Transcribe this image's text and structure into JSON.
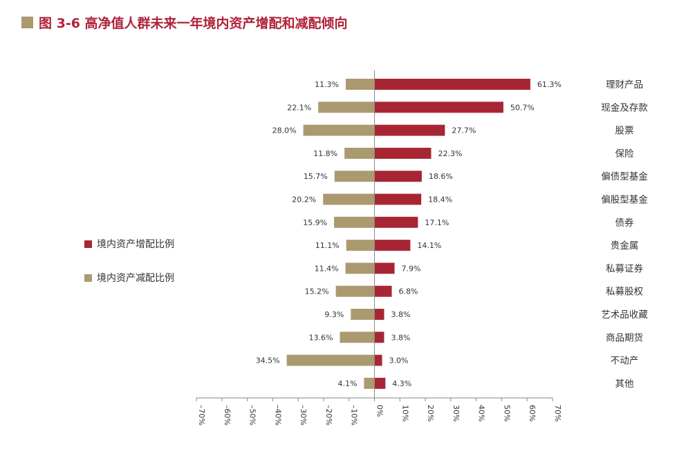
{
  "title": "图 3-6  高净值人群未来一年境内资产增配和减配倾向",
  "colors": {
    "increase": "#a82634",
    "decrease": "#ab9a6f",
    "title": "#b0213a",
    "axis": "#888888"
  },
  "chart_data": {
    "type": "bar",
    "orientation": "horizontal-diverging",
    "categories": [
      "理财产品",
      "现金及存款",
      "股票",
      "保险",
      "偏债型基金",
      "偏股型基金",
      "债券",
      "贵金属",
      "私募证券",
      "私募股权",
      "艺术品收藏",
      "商品期货",
      "不动产",
      "其他"
    ],
    "series": [
      {
        "name": "境内资产增配比例",
        "values": [
          61.3,
          50.7,
          27.7,
          22.3,
          18.6,
          18.4,
          17.1,
          14.1,
          7.9,
          6.8,
          3.8,
          3.8,
          3.0,
          4.3
        ]
      },
      {
        "name": "境内资产减配比例",
        "values": [
          11.3,
          22.1,
          28.0,
          11.8,
          15.7,
          20.2,
          15.9,
          11.1,
          11.4,
          15.2,
          9.3,
          13.6,
          34.5,
          4.1
        ]
      }
    ],
    "value_labels": {
      "increase": [
        "61.3%",
        "50.7%",
        "27.7%",
        "22.3%",
        "18.6%",
        "18.4%",
        "17.1%",
        "14.1%",
        "7.9%",
        "6.8%",
        "3.8%",
        "3.8%",
        "3.0%",
        "4.3%"
      ],
      "decrease": [
        "11.3%",
        "22.1%",
        "28.0%",
        "11.8%",
        "15.7%",
        "20.2%",
        "15.9%",
        "11.1%",
        "11.4%",
        "15.2%",
        "9.3%",
        "13.6%",
        "34.5%",
        "4.1%"
      ]
    },
    "xlim": [
      -70,
      70
    ],
    "xticks": [
      -70,
      -60,
      -50,
      -40,
      -30,
      -20,
      -10,
      0,
      10,
      20,
      30,
      40,
      50,
      60,
      70
    ],
    "xtick_labels": [
      "–70%",
      "–60%",
      "–50%",
      "–40%",
      "–30%",
      "–20%",
      "–10%",
      "0%",
      "10%",
      "20%",
      "30%",
      "40%",
      "50%",
      "60%",
      "70%"
    ],
    "legend_position": "left",
    "grid": false
  }
}
